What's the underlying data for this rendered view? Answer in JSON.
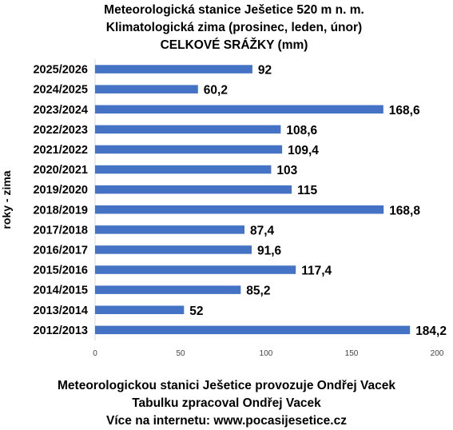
{
  "chart_data": {
    "type": "bar",
    "orientation": "horizontal",
    "title": [
      "Meteorologická stanice Ješetice 520 m n. m.",
      "Klimatologická zima (prosinec, leden, únor)",
      "CELKOVÉ SRÁŽKY (mm)"
    ],
    "ylabel": "roky - zima",
    "xlabel": "",
    "categories": [
      "2025/2026",
      "2024/2025",
      "2023/2024",
      "2022/2023",
      "2021/2022",
      "2020/2021",
      "2019/2020",
      "2018/2019",
      "2017/2018",
      "2016/2017",
      "2015/2016",
      "2014/2015",
      "2013/2014",
      "2012/2013"
    ],
    "values": [
      92,
      60.2,
      168.6,
      108.6,
      109.4,
      103,
      115,
      168.8,
      87.4,
      91.6,
      117.4,
      85.2,
      52,
      184.2
    ],
    "value_labels": [
      "92",
      "60,2",
      "168,6",
      "108,6",
      "109,4",
      "103",
      "115",
      "168,8",
      "87,4",
      "91,6",
      "117,4",
      "85,2",
      "52",
      "184,2"
    ],
    "xlim": [
      0,
      200
    ],
    "xticks": [
      0,
      50,
      100,
      150,
      200
    ],
    "grid": false,
    "legend": "none",
    "bar_color": "#4472C4"
  },
  "footer": {
    "line1": "Meteorologickou stanici Ješetice provozuje Ondřej Vacek",
    "line2": "Tabulku zpracoval Ondřej Vacek",
    "line3": "Více na internetu: www.pocasijesetice.cz"
  }
}
